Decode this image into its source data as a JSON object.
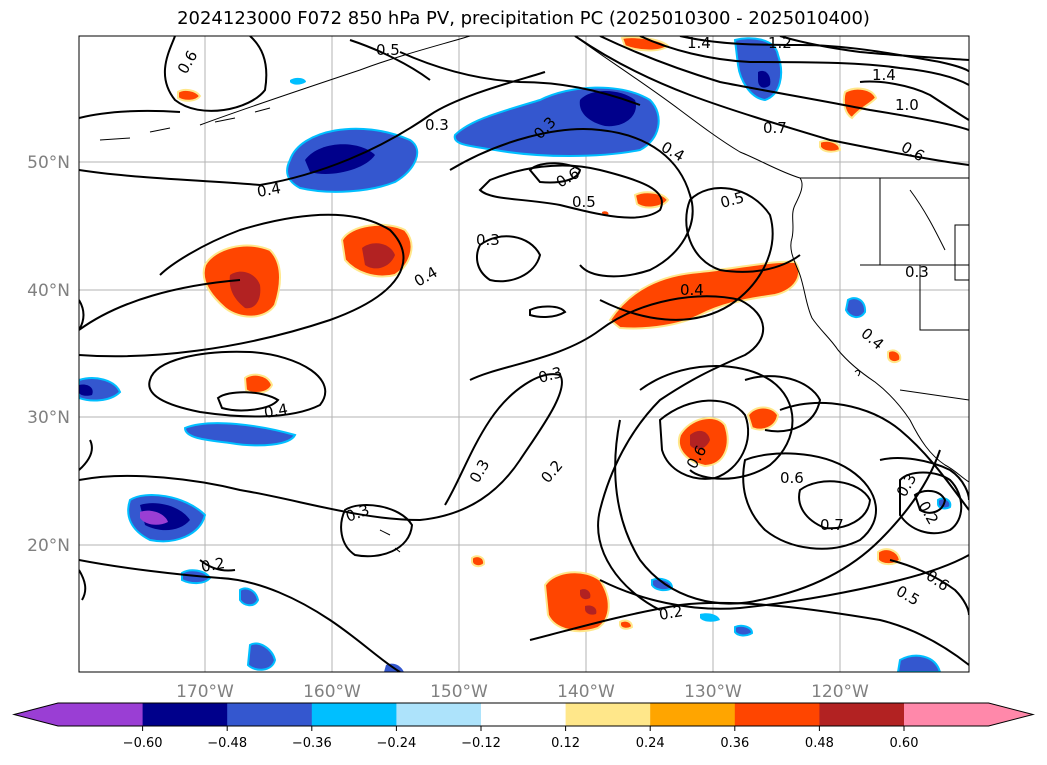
{
  "title": "2024123000 F072 850 hPa PV, precipitation PC (2025010300 - 2025010400)",
  "lat_labels": [
    "50°N",
    "40°N",
    "30°N",
    "20°N"
  ],
  "lon_labels": [
    "170°W",
    "160°W",
    "150°W",
    "140°W",
    "130°W",
    "120°W"
  ],
  "colorbar": {
    "tick_labels": [
      "−0.60",
      "−0.48",
      "−0.36",
      "−0.24",
      "−0.12",
      "0.12",
      "0.24",
      "0.36",
      "0.48",
      "0.60"
    ],
    "colors": [
      "#9a3ed4",
      "#00008b",
      "#3457cf",
      "#00bfff",
      "#ade3fb",
      "#ffffff",
      "#ffe78a",
      "#ffa500",
      "#ff4500",
      "#b22222",
      "#ff88aa"
    ]
  },
  "contour_labels": [
    "0.6",
    "0.5",
    "1.4",
    "1.2",
    "1.4",
    "1.0",
    "0.7",
    "0.6",
    "0.3",
    "0.4",
    "0.4",
    "0.6",
    "0.5",
    "0.5",
    "0.3",
    "0.4",
    "0.4",
    "0.3",
    "0.4",
    "0.3",
    "0.4",
    "0.6",
    "0.3",
    "0.2",
    "0.6",
    "0.7",
    "0.3",
    "0.2",
    "0.6",
    "0.5",
    "0.2",
    "0.3",
    "0.2",
    "0.3"
  ]
}
